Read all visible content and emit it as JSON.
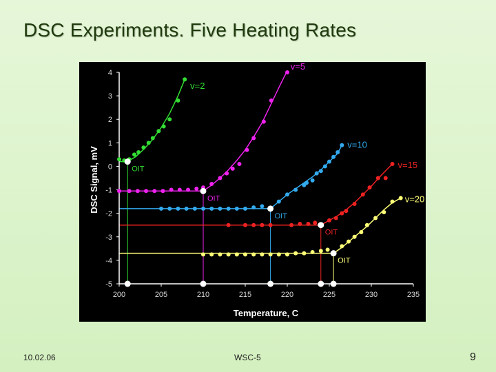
{
  "slide": {
    "title": "DSC Experiments. Five Heating Rates",
    "footer_date": "10.02.06",
    "footer_center": "WSC-5",
    "page_number": "9"
  },
  "chart_data": {
    "type": "scatter",
    "title": "",
    "xlabel": "Temperature, C",
    "ylabel": "DSC Signal, mV",
    "xlim": [
      200,
      235
    ],
    "ylim": [
      -5,
      4
    ],
    "xticks": [
      200,
      205,
      210,
      215,
      220,
      225,
      230,
      235
    ],
    "yticks": [
      4,
      3,
      2,
      1,
      0,
      -1,
      -2,
      -3,
      -4,
      -5
    ],
    "grid": false,
    "background": "#000000",
    "axis_color": "#ffffff",
    "tick_label_color": "#d9d9d9",
    "series": [
      {
        "name": "v=2",
        "color": "#33dd33",
        "baseline": 0.2,
        "oit": 201.0,
        "oit_label": "OIT",
        "points": [
          [
            200.0,
            0.3
          ],
          [
            200.6,
            0.25
          ],
          [
            201.2,
            0.3
          ],
          [
            201.8,
            0.5
          ],
          [
            202.3,
            0.6
          ],
          [
            202.9,
            0.8
          ],
          [
            203.5,
            1.0
          ],
          [
            204.0,
            1.2
          ],
          [
            204.7,
            1.5
          ],
          [
            205.3,
            1.7
          ],
          [
            206.0,
            2.0
          ],
          [
            207.0,
            2.8
          ],
          [
            207.8,
            3.7
          ]
        ],
        "fit": [
          [
            201.0,
            0.2
          ],
          [
            202.0,
            0.42
          ],
          [
            203.0,
            0.75
          ],
          [
            204.0,
            1.15
          ],
          [
            205.0,
            1.65
          ],
          [
            206.0,
            2.25
          ],
          [
            207.0,
            3.0
          ],
          [
            207.8,
            3.7
          ]
        ]
      },
      {
        "name": "v=5",
        "color": "#ee22ee",
        "baseline": -1.05,
        "oit": 210.0,
        "oit_label": "OIT",
        "points": [
          [
            200.0,
            -1.05
          ],
          [
            201.2,
            -1.05
          ],
          [
            202.2,
            -1.05
          ],
          [
            203.2,
            -1.05
          ],
          [
            204.2,
            -1.05
          ],
          [
            205.2,
            -1.05
          ],
          [
            206.2,
            -1.0
          ],
          [
            207.2,
            -1.0
          ],
          [
            208.2,
            -1.0
          ],
          [
            209.2,
            -0.95
          ],
          [
            210.0,
            -0.9
          ],
          [
            211.0,
            -0.75
          ],
          [
            212.0,
            -0.5
          ],
          [
            212.8,
            -0.3
          ],
          [
            213.5,
            -0.1
          ],
          [
            214.3,
            0.1
          ],
          [
            215.2,
            0.7
          ],
          [
            216.0,
            1.2
          ],
          [
            217.2,
            1.9
          ],
          [
            218.1,
            2.8
          ],
          [
            220.0,
            4.0
          ]
        ],
        "fit": [
          [
            210.0,
            -1.05
          ],
          [
            211.0,
            -0.8
          ],
          [
            212.0,
            -0.5
          ],
          [
            213.0,
            -0.15
          ],
          [
            214.0,
            0.25
          ],
          [
            215.0,
            0.7
          ],
          [
            216.0,
            1.25
          ],
          [
            217.0,
            1.85
          ],
          [
            218.0,
            2.6
          ],
          [
            219.0,
            3.35
          ],
          [
            219.9,
            4.0
          ]
        ]
      },
      {
        "name": "v=10",
        "color": "#33aaee",
        "baseline": -1.8,
        "oit": 218.0,
        "oit_label": "OIT",
        "points": [
          [
            205.0,
            -1.8
          ],
          [
            206.0,
            -1.8
          ],
          [
            207.0,
            -1.8
          ],
          [
            208.0,
            -1.8
          ],
          [
            209.0,
            -1.8
          ],
          [
            210.0,
            -1.8
          ],
          [
            211.0,
            -1.8
          ],
          [
            212.0,
            -1.8
          ],
          [
            213.0,
            -1.8
          ],
          [
            214.0,
            -1.8
          ],
          [
            215.0,
            -1.8
          ],
          [
            216.0,
            -1.75
          ],
          [
            217.0,
            -1.7
          ],
          [
            218.0,
            -1.8
          ],
          [
            219.0,
            -1.5
          ],
          [
            220.0,
            -1.2
          ],
          [
            221.0,
            -1.0
          ],
          [
            222.0,
            -0.8
          ],
          [
            222.3,
            -0.7
          ],
          [
            223.0,
            -0.6
          ],
          [
            223.5,
            -0.3
          ],
          [
            224.0,
            -0.2
          ],
          [
            224.5,
            0.0
          ],
          [
            225.0,
            0.2
          ],
          [
            225.5,
            0.4
          ],
          [
            226.0,
            0.6
          ],
          [
            226.5,
            0.9
          ]
        ],
        "fit": [
          [
            218.0,
            -1.8
          ],
          [
            219.0,
            -1.5
          ],
          [
            220.0,
            -1.2
          ],
          [
            221.0,
            -0.95
          ],
          [
            222.0,
            -0.7
          ],
          [
            223.0,
            -0.45
          ],
          [
            224.0,
            -0.15
          ],
          [
            225.0,
            0.2
          ],
          [
            226.0,
            0.55
          ],
          [
            226.5,
            0.9
          ]
        ]
      },
      {
        "name": "v=15",
        "color": "#ee2222",
        "baseline": -2.5,
        "oit": 224.0,
        "oit_label": "OIT",
        "points": [
          [
            213.0,
            -2.5
          ],
          [
            215.0,
            -2.5
          ],
          [
            216.0,
            -2.5
          ],
          [
            217.0,
            -2.5
          ],
          [
            218.0,
            -2.5
          ],
          [
            220.5,
            -2.5
          ],
          [
            221.5,
            -2.45
          ],
          [
            222.5,
            -2.45
          ],
          [
            223.3,
            -2.4
          ],
          [
            224.0,
            -2.5
          ],
          [
            225.0,
            -2.3
          ],
          [
            225.8,
            -2.2
          ],
          [
            226.5,
            -2.0
          ],
          [
            227.0,
            -1.9
          ],
          [
            228.0,
            -1.6
          ],
          [
            229.0,
            -1.2
          ],
          [
            229.8,
            -0.9
          ],
          [
            230.8,
            -0.5
          ],
          [
            231.7,
            -0.5
          ],
          [
            232.5,
            0.1
          ]
        ],
        "fit": [
          [
            224.0,
            -2.5
          ],
          [
            225.0,
            -2.3
          ],
          [
            226.0,
            -2.1
          ],
          [
            227.0,
            -1.85
          ],
          [
            228.0,
            -1.55
          ],
          [
            229.0,
            -1.2
          ],
          [
            230.0,
            -0.85
          ],
          [
            231.0,
            -0.45
          ],
          [
            232.5,
            0.1
          ]
        ]
      },
      {
        "name": "v=20",
        "color": "#ffff77",
        "baseline": -3.7,
        "oit": 225.5,
        "oit_label": "OIT",
        "points": [
          [
            210.0,
            -3.75
          ],
          [
            211.0,
            -3.75
          ],
          [
            212.0,
            -3.75
          ],
          [
            213.0,
            -3.75
          ],
          [
            214.0,
            -3.75
          ],
          [
            215.0,
            -3.75
          ],
          [
            216.0,
            -3.75
          ],
          [
            217.0,
            -3.75
          ],
          [
            218.0,
            -3.75
          ],
          [
            219.0,
            -3.75
          ],
          [
            220.0,
            -3.75
          ],
          [
            221.0,
            -3.7
          ],
          [
            222.0,
            -3.7
          ],
          [
            223.0,
            -3.65
          ],
          [
            224.0,
            -3.6
          ],
          [
            224.8,
            -3.55
          ],
          [
            225.5,
            -3.7
          ],
          [
            226.5,
            -3.4
          ],
          [
            227.3,
            -3.2
          ],
          [
            228.0,
            -3.0
          ],
          [
            228.8,
            -2.8
          ],
          [
            229.5,
            -2.5
          ],
          [
            230.5,
            -2.2
          ],
          [
            231.5,
            -1.95
          ],
          [
            232.5,
            -1.5
          ],
          [
            233.5,
            -1.35
          ]
        ],
        "fit": [
          [
            225.5,
            -3.7
          ],
          [
            226.5,
            -3.45
          ],
          [
            227.5,
            -3.15
          ],
          [
            228.5,
            -2.85
          ],
          [
            229.5,
            -2.55
          ],
          [
            230.5,
            -2.2
          ],
          [
            231.5,
            -1.85
          ],
          [
            232.5,
            -1.55
          ],
          [
            233.5,
            -1.35
          ]
        ]
      }
    ]
  }
}
